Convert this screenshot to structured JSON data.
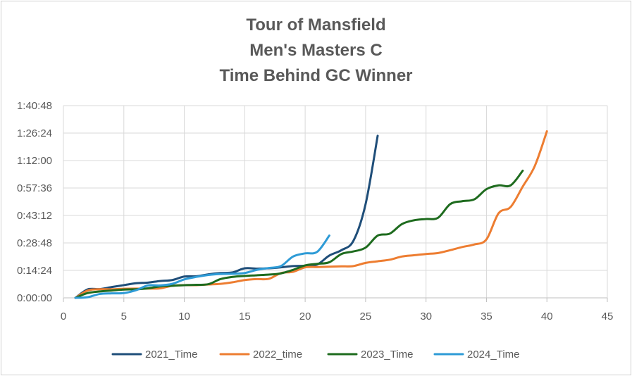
{
  "chart_data": {
    "type": "line",
    "title_lines": [
      "Tour of Mansfield",
      "Men's Masters C",
      "Time Behind GC Winner"
    ],
    "xlabel": "",
    "ylabel": "",
    "xlim": [
      0,
      45
    ],
    "ylim_seconds": [
      0,
      6048
    ],
    "x_ticks": [
      0,
      5,
      10,
      15,
      20,
      25,
      30,
      35,
      40,
      45
    ],
    "y_ticks": [
      "0:00:00",
      "0:14:24",
      "0:28:48",
      "0:43:12",
      "0:57:36",
      "1:12:00",
      "1:26:24",
      "1:40:48"
    ],
    "y_tick_values_seconds": [
      0,
      864,
      1728,
      2592,
      3456,
      4320,
      5184,
      6048
    ],
    "grid": true,
    "legend_position": "bottom",
    "series": [
      {
        "name": "2021_Time",
        "color": "#1f4e79",
        "x": [
          1,
          2,
          3,
          4,
          5,
          6,
          7,
          8,
          9,
          10,
          11,
          12,
          13,
          14,
          15,
          16,
          17,
          18,
          19,
          20,
          21,
          22,
          23,
          24,
          25,
          26
        ],
        "y": [
          0,
          265,
          275,
          340,
          400,
          460,
          480,
          530,
          560,
          670,
          680,
          740,
          780,
          800,
          930,
          920,
          930,
          960,
          1000,
          1010,
          1050,
          1330,
          1500,
          1800,
          2950,
          5100
        ]
      },
      {
        "name": "2022_time",
        "color": "#ed7d31",
        "x": [
          1,
          2,
          3,
          4,
          5,
          6,
          7,
          8,
          9,
          10,
          11,
          12,
          13,
          14,
          15,
          16,
          17,
          18,
          19,
          20,
          21,
          22,
          23,
          24,
          25,
          26,
          27,
          28,
          29,
          30,
          31,
          32,
          33,
          34,
          35,
          36,
          37,
          38,
          39,
          40
        ],
        "y": [
          0,
          230,
          270,
          270,
          285,
          290,
          290,
          300,
          380,
          400,
          400,
          420,
          440,
          490,
          560,
          590,
          600,
          780,
          820,
          960,
          970,
          980,
          990,
          1000,
          1100,
          1150,
          1200,
          1300,
          1340,
          1380,
          1410,
          1500,
          1600,
          1680,
          1840,
          2660,
          2860,
          3500,
          4150,
          5240
        ]
      },
      {
        "name": "2023_Time",
        "color": "#1e6b1e",
        "x": [
          1,
          2,
          3,
          4,
          5,
          6,
          7,
          8,
          9,
          10,
          11,
          12,
          13,
          14,
          15,
          16,
          17,
          18,
          19,
          20,
          21,
          22,
          23,
          24,
          25,
          26,
          27,
          28,
          29,
          30,
          31,
          32,
          33,
          34,
          35,
          36,
          37,
          38
        ],
        "y": [
          0,
          150,
          200,
          230,
          260,
          270,
          300,
          360,
          380,
          400,
          410,
          430,
          590,
          660,
          690,
          710,
          730,
          770,
          880,
          1020,
          1070,
          1120,
          1380,
          1460,
          1580,
          1960,
          2020,
          2320,
          2440,
          2480,
          2520,
          2950,
          3040,
          3100,
          3420,
          3540,
          3540,
          4000
        ]
      },
      {
        "name": "2024_Time",
        "color": "#2e9bd6",
        "x": [
          1,
          2,
          3,
          4,
          5,
          6,
          7,
          8,
          9,
          10,
          11,
          12,
          13,
          14,
          15,
          16,
          17,
          18,
          19,
          20,
          21,
          22
        ],
        "y": [
          0,
          20,
          120,
          140,
          150,
          240,
          390,
          390,
          440,
          580,
          660,
          720,
          750,
          760,
          780,
          880,
          940,
          1000,
          1300,
          1400,
          1450,
          1960
        ]
      }
    ]
  }
}
